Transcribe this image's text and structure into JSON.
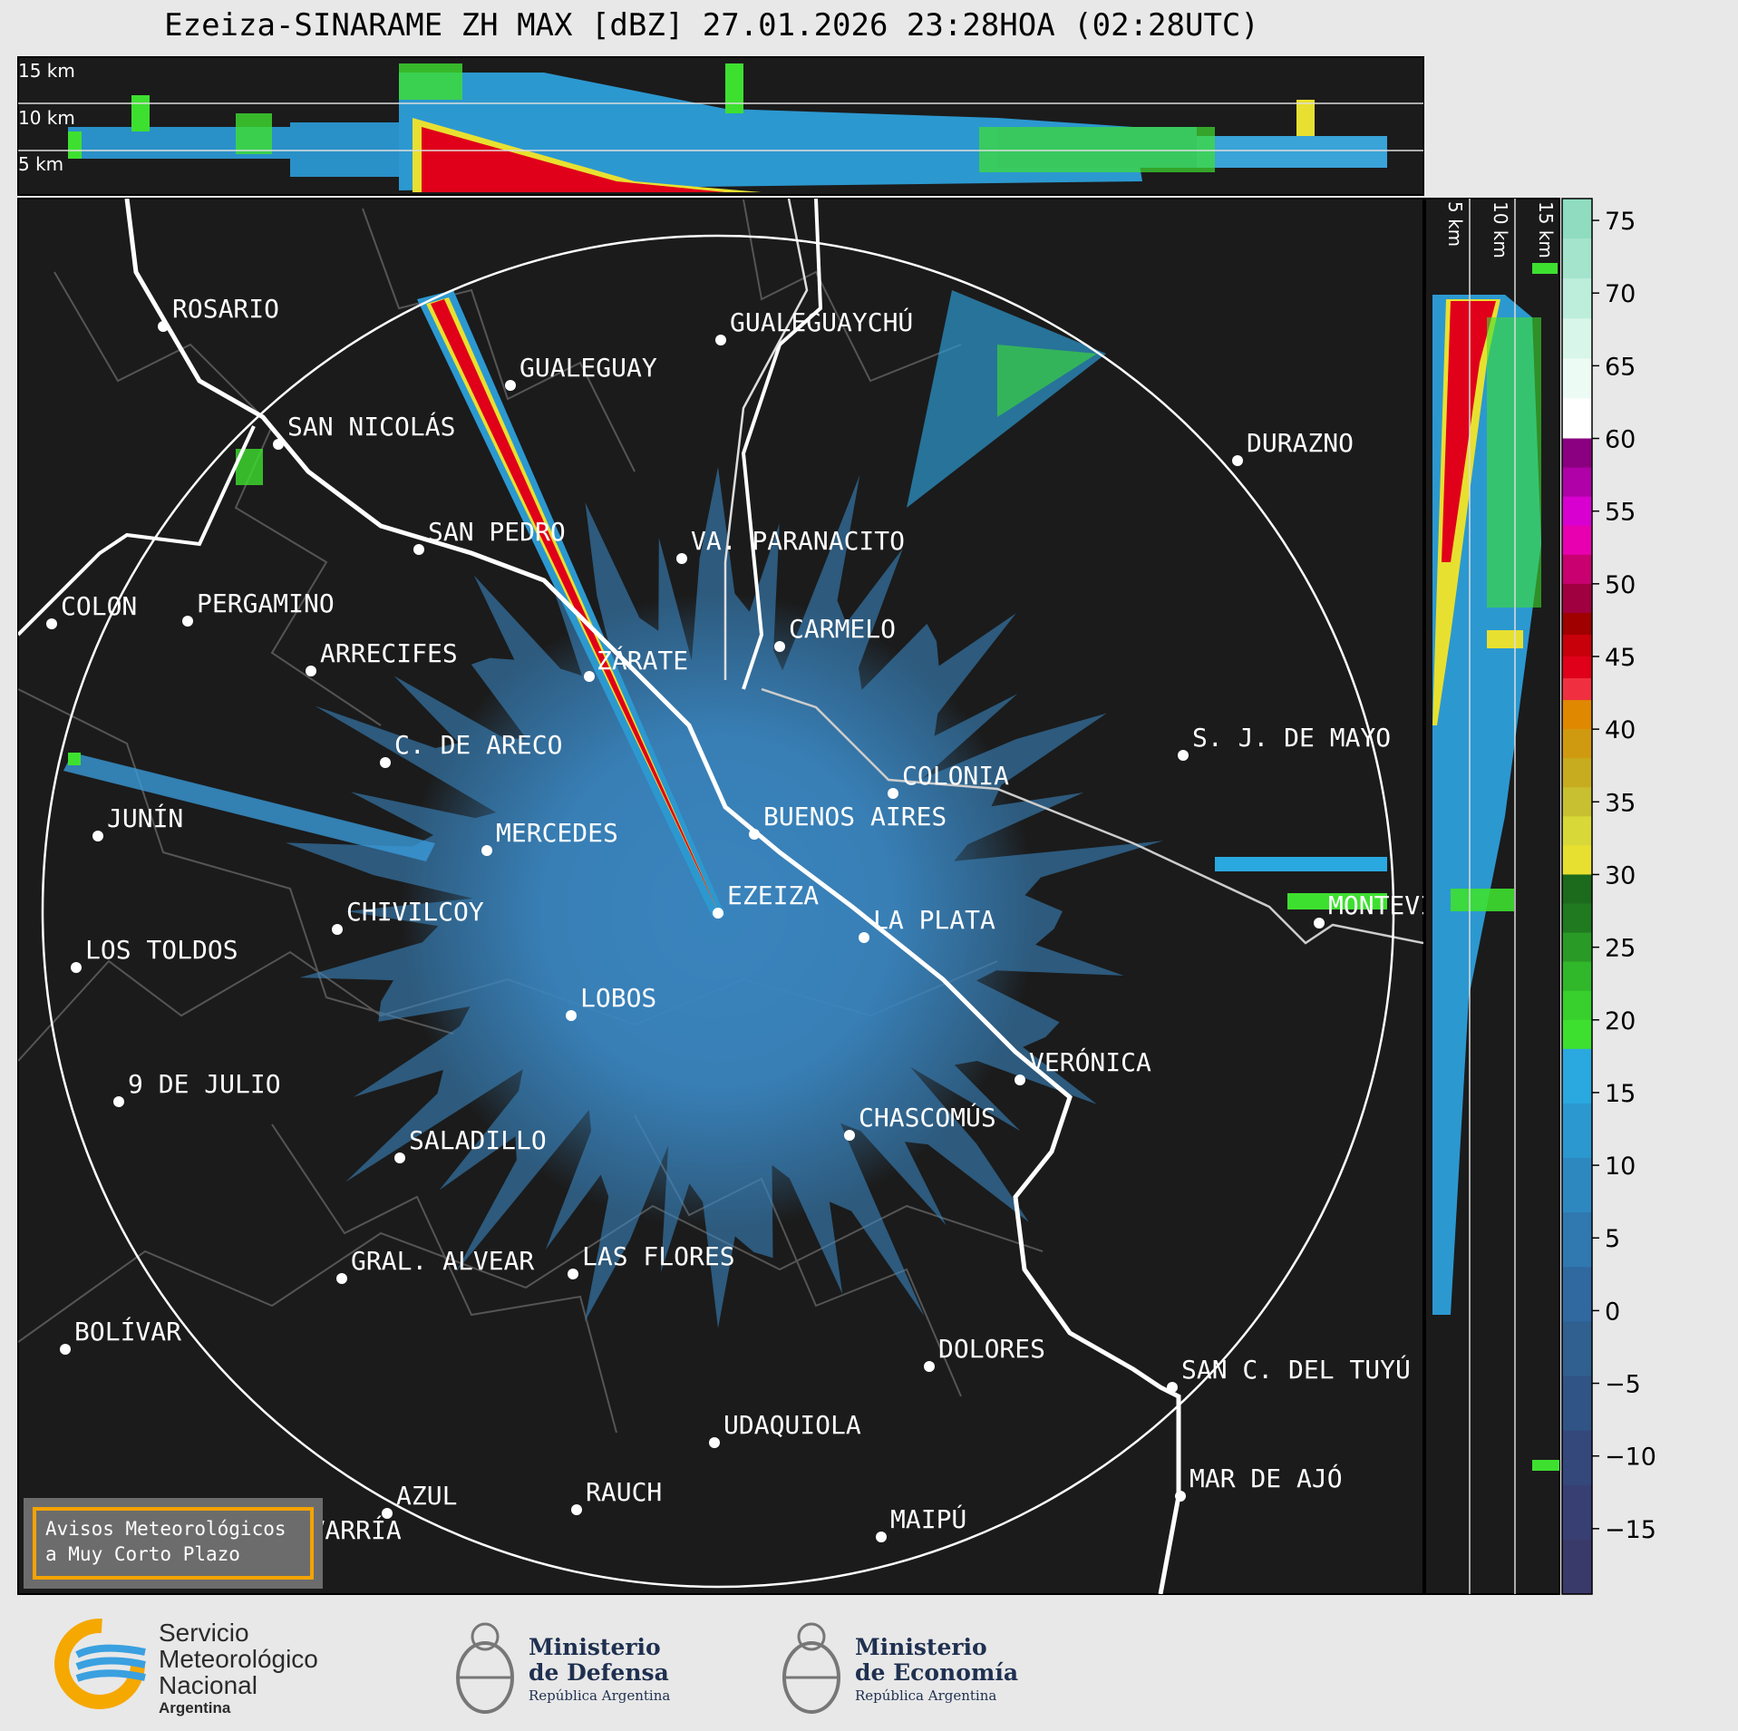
{
  "title": "Ezeiza-SINARAME ZH MAX [dBZ] 27.01.2026 23:28HOA (02:28UTC)",
  "top_panel_heights": [
    "15 km",
    "10 km",
    "5 km"
  ],
  "side_panel_heights": [
    "5 km",
    "10 km",
    "15 km"
  ],
  "colorbar": {
    "ticks": [
      "75",
      "70",
      "65",
      "60",
      "55",
      "50",
      "45",
      "40",
      "35",
      "30",
      "25",
      "20",
      "15",
      "10",
      "5",
      "0",
      "−5",
      "−10",
      "−15"
    ],
    "colors": {
      "teal": "#8fdcc0",
      "white": "#ffffff",
      "magenta": "#c000a0",
      "darkred": "#a00000",
      "red": "#e0001a",
      "orange": "#e08800",
      "yellow": "#e8e030",
      "darkgreen": "#1c6a1c",
      "green": "#3ee030",
      "cyan": "#2aa8e0",
      "blue": "#2f70a8",
      "navy": "#3a3f70"
    }
  },
  "cities": [
    {
      "name": "ROSARIO"
    },
    {
      "name": "GUALEGUAYCHÚ"
    },
    {
      "name": "GUALEGUAY"
    },
    {
      "name": "SAN NICOLÁS"
    },
    {
      "name": "DURAZNO"
    },
    {
      "name": "SAN PEDRO"
    },
    {
      "name": "VA. PARANACITO"
    },
    {
      "name": "COLON"
    },
    {
      "name": "PERGAMINO"
    },
    {
      "name": "CARMELO"
    },
    {
      "name": "ARRECIFES"
    },
    {
      "name": "ZÁRATE"
    },
    {
      "name": "S. J. DE MAYO"
    },
    {
      "name": "C. DE ARECO"
    },
    {
      "name": "COLONIA"
    },
    {
      "name": "JUNÍN"
    },
    {
      "name": "BUENOS AIRES"
    },
    {
      "name": "MERCEDES"
    },
    {
      "name": "EZEIZA"
    },
    {
      "name": "CHIVILCOY"
    },
    {
      "name": "MONTEVIDEO"
    },
    {
      "name": "LA PLATA"
    },
    {
      "name": "LOS TOLDOS"
    },
    {
      "name": "LOBOS"
    },
    {
      "name": "VERÓNICA"
    },
    {
      "name": "9 DE JULIO"
    },
    {
      "name": "CHASCOMÚS"
    },
    {
      "name": "SALADILLO"
    },
    {
      "name": "GRAL. ALVEAR"
    },
    {
      "name": "LAS FLORES"
    },
    {
      "name": "BOLÍVAR"
    },
    {
      "name": "DOLORES"
    },
    {
      "name": "SAN C. DEL TUYÚ"
    },
    {
      "name": "UDAQUIOLA"
    },
    {
      "name": "MAR DE AJÓ"
    },
    {
      "name": "RAUCH"
    },
    {
      "name": "AZUL"
    },
    {
      "name": "OLAVARRÍA"
    },
    {
      "name": "MAIPÚ"
    }
  ],
  "warning_box": {
    "line1": "Avisos Meteorológicos",
    "line2": "a Muy Corto Plazo"
  },
  "logos": {
    "smn": {
      "line1": "Servicio",
      "line2": "Meteorológico",
      "line3": "Nacional",
      "line4": "Argentina"
    },
    "defensa": {
      "line1": "Ministerio",
      "line2": "de Defensa",
      "line3": "República Argentina"
    },
    "economia": {
      "line1": "Ministerio",
      "line2": "de Economía",
      "line3": "República Argentina"
    }
  }
}
